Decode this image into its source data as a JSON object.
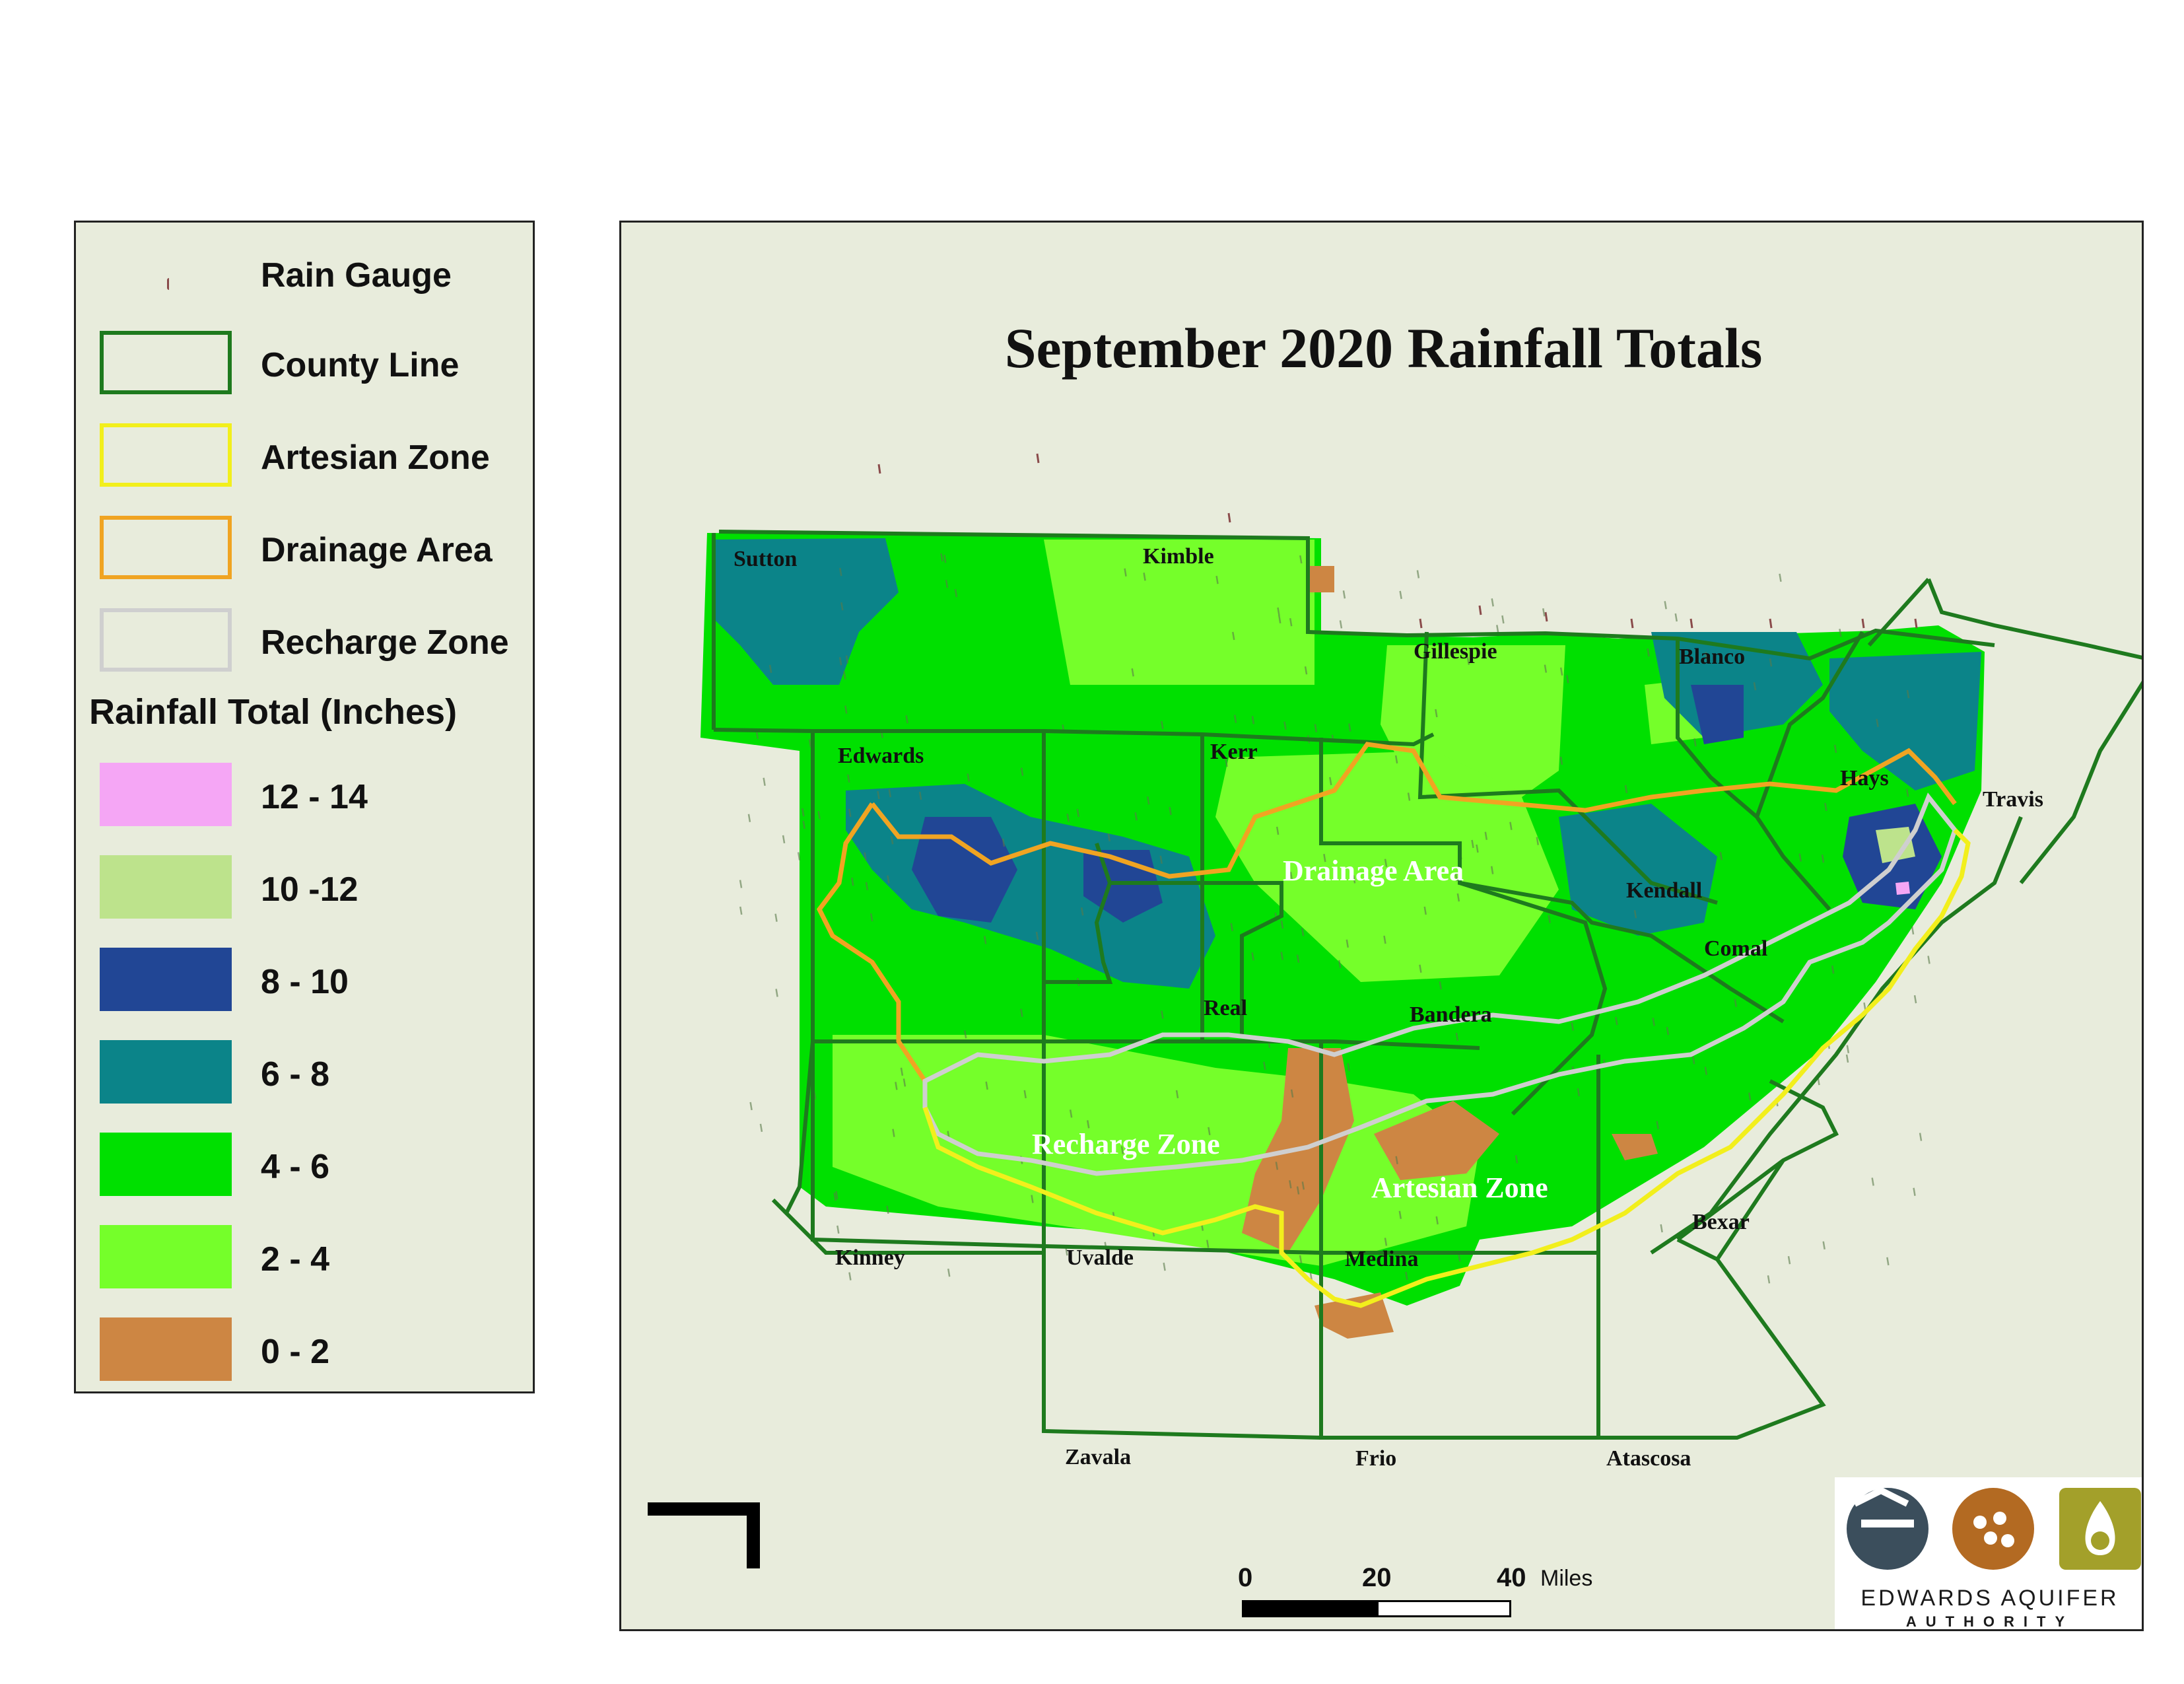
{
  "title": "September 2020 Rainfall Totals",
  "legend": {
    "symbols": [
      {
        "label": "Rain Gauge",
        "icon": "rain-gauge-icon",
        "color": "#8a4b4b"
      },
      {
        "label": "County Line",
        "color": "#1e7a1e"
      },
      {
        "label": "Artesian Zone",
        "color": "#f2ef1c"
      },
      {
        "label": "Drainage Area",
        "color": "#f0a422"
      },
      {
        "label": "Recharge Zone",
        "color": "#cfcfcf"
      }
    ],
    "heading": "Rainfall Total (Inches)",
    "classes": [
      {
        "label": "12 - 14",
        "color": "#f5a6f5"
      },
      {
        "label": "10 -12",
        "color": "#bde38c"
      },
      {
        "label": "8 - 10",
        "color": "#214695"
      },
      {
        "label": "6 - 8",
        "color": "#0b8489"
      },
      {
        "label": "4 - 6",
        "color": "#00e000"
      },
      {
        "label": "2 - 4",
        "color": "#75ff2a"
      },
      {
        "label": "0 - 2",
        "color": "#cd8643"
      }
    ]
  },
  "counties": [
    "Sutton",
    "Kimble",
    "Gillespie",
    "Blanco",
    "Edwards",
    "Kerr",
    "Hays",
    "Travis",
    "Kendall",
    "Comal",
    "Real",
    "Bandera",
    "Kinney",
    "Uvalde",
    "Medina",
    "Bexar",
    "Zavala",
    "Frio",
    "Atascosa"
  ],
  "zone_labels": [
    "Drainage Area",
    "Recharge Zone",
    "Artesian Zone"
  ],
  "scale_bar": {
    "ticks": [
      "0",
      "20",
      "40"
    ],
    "unit": "Miles"
  },
  "logo": {
    "line1": "EDWARDS AQUIFER",
    "line2": "AUTHORITY"
  }
}
